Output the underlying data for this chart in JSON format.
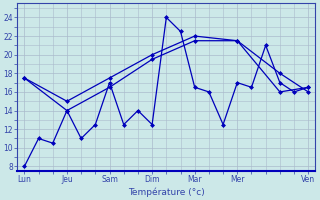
{
  "xlabel": "Température (°c)",
  "background_color": "#cce8e8",
  "grid_color": "#aabbcc",
  "line_color": "#0000bb",
  "ylim": [
    7.5,
    25.5
  ],
  "yticks": [
    8,
    10,
    12,
    14,
    16,
    18,
    20,
    22,
    24
  ],
  "xlim": [
    -0.5,
    20.5
  ],
  "day_labels": [
    "Lun",
    "Jeu",
    "Sam",
    "Dim",
    "Mar",
    "Mer",
    "Ven"
  ],
  "day_positions": [
    0,
    3,
    6,
    9,
    12,
    15,
    20
  ],
  "line1_x": [
    0,
    1,
    2,
    3,
    4,
    5,
    6,
    7,
    8,
    9,
    10,
    11,
    12,
    13,
    14,
    15,
    16,
    17,
    18,
    19,
    20
  ],
  "line1_y": [
    8,
    11,
    10.5,
    14,
    11,
    12.5,
    17,
    12.5,
    14,
    12.5,
    24,
    22.5,
    16.5,
    16,
    12.5,
    17,
    16.5,
    21,
    17,
    16,
    16.5
  ],
  "line2_x": [
    0,
    3,
    6,
    9,
    12,
    15,
    18,
    20
  ],
  "line2_y": [
    17.5,
    14,
    16.5,
    19.5,
    21.5,
    21.5,
    18,
    16
  ],
  "line3_x": [
    0,
    3,
    6,
    9,
    12,
    15,
    18,
    20
  ],
  "line3_y": [
    17.5,
    15,
    17.5,
    20,
    22,
    21.5,
    16,
    16.5
  ]
}
